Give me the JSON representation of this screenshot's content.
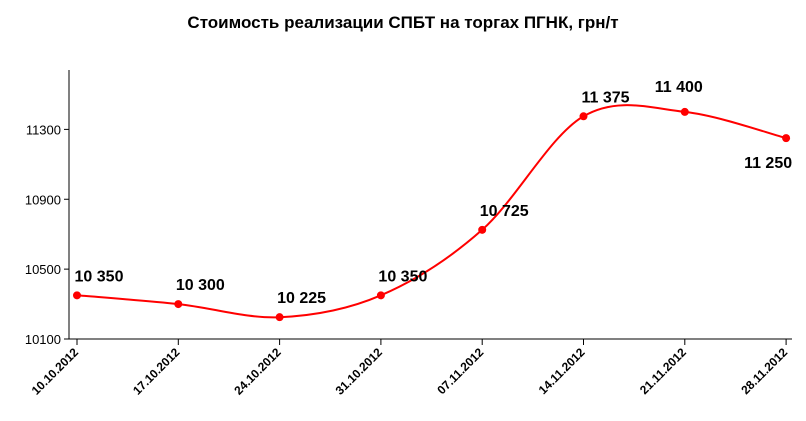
{
  "chart_data": {
    "type": "line",
    "title": "Стоимость реализации СПБТ на торгах ПГНК, грн/т",
    "xlabel": "",
    "ylabel": "",
    "categories": [
      "10.10.2012",
      "17.10.2012",
      "24.10.2012",
      "31.10.2012",
      "07.11.2012",
      "14.11.2012",
      "21.11.2012",
      "28.11.2012"
    ],
    "values": [
      10350,
      10300,
      10225,
      10350,
      10725,
      11375,
      11400,
      11250
    ],
    "data_labels": [
      "10 350",
      "10 300",
      "10 225",
      "10 350",
      "10 725",
      "11 375",
      "11 400",
      "11 250"
    ],
    "yticks": [
      10100,
      10500,
      10900,
      11300
    ],
    "ytick_labels": [
      "10100",
      "10500",
      "10900",
      "11300"
    ],
    "ylim": [
      10100,
      11640
    ],
    "grid": false,
    "legend": "none",
    "line_color": "#ff0000",
    "marker_color": "#ff0000"
  }
}
